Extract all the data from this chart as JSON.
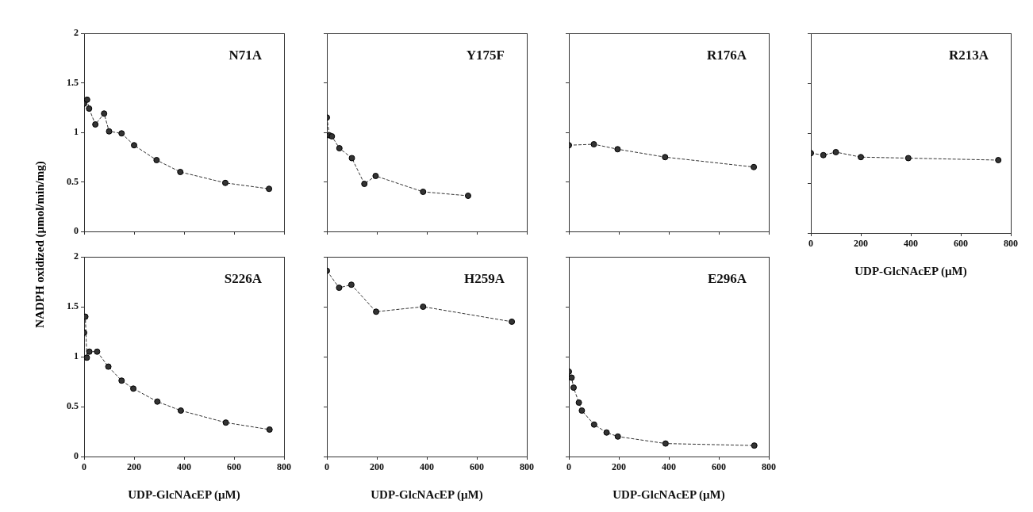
{
  "chart_data": [
    {
      "type": "line",
      "title": "N71A",
      "ylabel": "NADPH oxidized (µmol/min/mg)",
      "x": [
        0,
        5,
        12,
        20,
        45,
        80,
        100,
        150,
        200,
        290,
        385,
        565,
        740
      ],
      "series": [
        {
          "color": "#333333",
          "values": [
            1.29,
            null,
            1.33,
            1.24,
            1.08,
            1.19,
            1.01,
            0.99,
            0.87,
            0.72,
            0.6,
            0.49,
            0.43
          ]
        }
      ],
      "xlim": [
        0,
        800
      ],
      "ylim": [
        0,
        2
      ],
      "xticks": [
        0,
        200,
        400,
        600,
        800
      ],
      "yticks": [
        0,
        0.5,
        1,
        1.5,
        2
      ],
      "tick_labels": "y",
      "marker": "circle",
      "line_style": "dashed"
    },
    {
      "type": "line",
      "title": "Y175F",
      "x": [
        0,
        10,
        20,
        50,
        100,
        150,
        195,
        385,
        565
      ],
      "series": [
        {
          "color": "#333333",
          "values": [
            1.15,
            0.97,
            0.96,
            0.84,
            0.74,
            0.48,
            0.56,
            0.4,
            0.36
          ]
        }
      ],
      "xlim": [
        0,
        800
      ],
      "ylim": [
        0,
        2
      ],
      "xticks": [
        0,
        200,
        400,
        600,
        800
      ],
      "yticks": [
        0,
        0.5,
        1,
        1.5,
        2
      ],
      "tick_labels": false,
      "marker": "circle",
      "line_style": "dashed"
    },
    {
      "type": "line",
      "title": "R176A",
      "x": [
        0,
        100,
        195,
        385,
        740
      ],
      "series": [
        {
          "color": "#333333",
          "values": [
            0.87,
            0.88,
            0.83,
            0.75,
            0.65
          ]
        }
      ],
      "xlim": [
        0,
        800
      ],
      "ylim": [
        0,
        2
      ],
      "xticks": [
        0,
        200,
        400,
        600,
        800
      ],
      "yticks": [
        0,
        0.5,
        1,
        1.5,
        2
      ],
      "tick_labels": false,
      "marker": "circle",
      "line_style": "dashed"
    },
    {
      "type": "line",
      "title": "R213A",
      "xlabel": "UDP-GlcNAcEP (µM)",
      "x": [
        0,
        50,
        100,
        200,
        390,
        750
      ],
      "series": [
        {
          "color": "#333333",
          "values": [
            0.8,
            0.78,
            0.81,
            0.76,
            0.75,
            0.73
          ]
        }
      ],
      "xlim": [
        0,
        800
      ],
      "ylim": [
        0,
        2
      ],
      "xticks": [
        0,
        200,
        400,
        600,
        800
      ],
      "yticks": [
        0,
        0.5,
        1,
        1.5,
        2
      ],
      "tick_labels": "x",
      "marker": "circle",
      "line_style": "dashed"
    },
    {
      "type": "line",
      "title": "S226A",
      "xlabel": "UDP-GlcNAcEP (µM)",
      "x": [
        0,
        5,
        11,
        21,
        52,
        97,
        150,
        197,
        293,
        387,
        567,
        742
      ],
      "series": [
        {
          "color": "#333333",
          "values": [
            1.24,
            1.4,
            0.99,
            1.05,
            1.05,
            0.9,
            0.76,
            0.68,
            0.55,
            0.46,
            0.34,
            0.27
          ]
        }
      ],
      "xlim": [
        0,
        800
      ],
      "ylim": [
        0,
        2
      ],
      "xticks": [
        0,
        200,
        400,
        600,
        800
      ],
      "yticks": [
        0,
        0.5,
        1,
        1.5,
        2
      ],
      "marker": "circle",
      "line_style": "dashed"
    },
    {
      "type": "line",
      "title": "H259A",
      "xlabel": "UDP-GlcNAcEP (µM)",
      "x": [
        0,
        49,
        98,
        197,
        385,
        740
      ],
      "series": [
        {
          "color": "#333333",
          "values": [
            1.86,
            1.69,
            1.72,
            1.45,
            1.5,
            1.35
          ]
        }
      ],
      "xlim": [
        0,
        800
      ],
      "ylim": [
        0,
        2
      ],
      "xticks": [
        0,
        200,
        400,
        600,
        800
      ],
      "yticks": [
        0,
        0.5,
        1,
        1.5,
        2
      ],
      "tick_labels": "x",
      "marker": "circle",
      "line_style": "dashed"
    },
    {
      "type": "line",
      "title": "E296A",
      "xlabel": "UDP-GlcNAcEP (µM)",
      "x": [
        0,
        11,
        19,
        40,
        52,
        101,
        151,
        196,
        387,
        742
      ],
      "series": [
        {
          "color": "#333333",
          "values": [
            0.85,
            0.79,
            0.69,
            0.54,
            0.46,
            0.32,
            0.24,
            0.2,
            0.13,
            0.11
          ]
        }
      ],
      "xlim": [
        0,
        800
      ],
      "ylim": [
        0,
        2
      ],
      "xticks": [
        0,
        200,
        400,
        600,
        800
      ],
      "yticks": [
        0,
        0.5,
        1,
        1.5,
        2
      ],
      "tick_labels": "x",
      "marker": "circle",
      "line_style": "dashed"
    }
  ]
}
